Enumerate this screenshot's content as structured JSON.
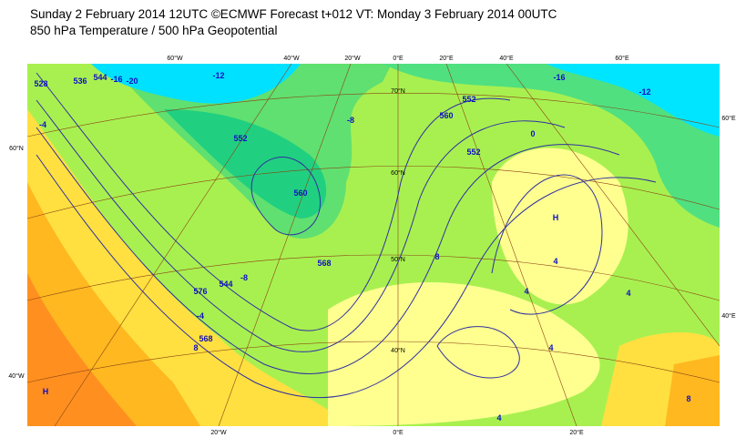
{
  "header": {
    "line1": "Sunday 2 February 2014 12UTC ©ECMWF Forecast t+012 VT: Monday 3 February 2014 00UTC",
    "line2": "850 hPa Temperature / 500 hPa Geopotential"
  },
  "map": {
    "top_longitude_labels": [
      "60°W",
      "40°W",
      "20°W",
      "0°E",
      "20°E",
      "40°E",
      "60°E"
    ],
    "bottom_longitude_labels": [
      "20°W",
      "0°E",
      "20°E"
    ],
    "left_labels": [
      "60°N",
      "40°W"
    ],
    "right_labels": [
      "60°E",
      "40°E"
    ],
    "inner_latitude_labels": [
      "70°N",
      "60°N",
      "50°N",
      "40°N"
    ],
    "contour_labels": [
      "-20",
      "-16",
      "-12",
      "-16",
      "-8",
      "-12",
      "-4",
      "-8",
      "-4",
      "0",
      "4",
      "8",
      "528",
      "536",
      "544",
      "552",
      "560",
      "552",
      "560",
      "568",
      "576",
      "4",
      "8",
      "4",
      "4",
      "4",
      "552",
      "544",
      "568",
      "8",
      "H",
      "H"
    ]
  }
}
